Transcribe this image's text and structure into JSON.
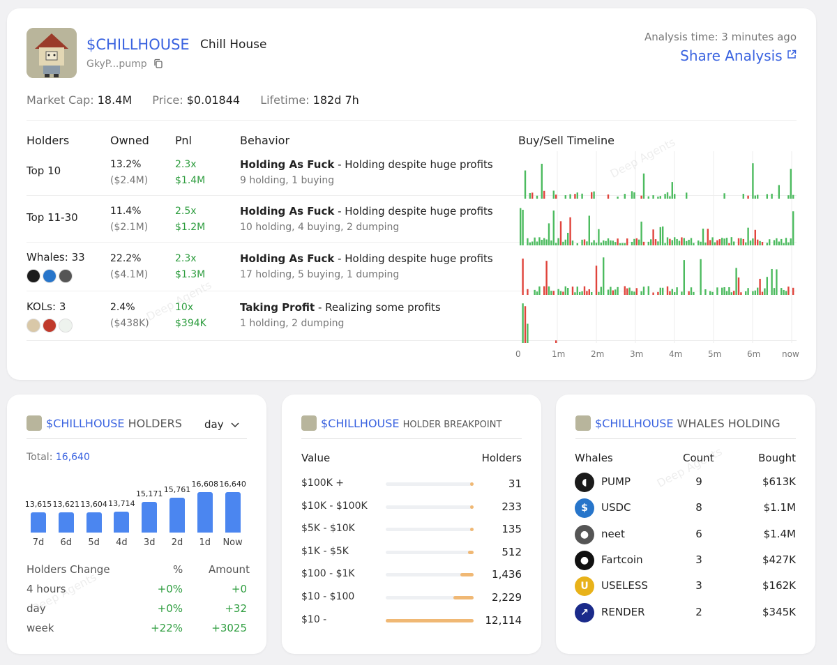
{
  "token": {
    "ticker": "$CHILLHOUSE",
    "name": "Chill House",
    "address": "GkyP...pump",
    "analysis_time": "Analysis time: 3 minutes ago",
    "share_label": "Share Analysis",
    "market_cap_label": "Market Cap:",
    "market_cap": "18.4M",
    "price_label": "Price:",
    "price": "$0.01844",
    "lifetime_label": "Lifetime:",
    "lifetime": "182d 7h"
  },
  "table": {
    "headers": [
      "Holders",
      "Owned",
      "Pnl",
      "Behavior",
      "Buy/Sell Timeline"
    ],
    "rows": [
      {
        "label": "Top 10",
        "owned_pct": "13.2%",
        "owned_usd": "($2.4M)",
        "pnl_x": "2.3x",
        "pnl_usd": "$1.4M",
        "behavior": "Holding As Fuck",
        "behavior_desc": " - Holding despite huge profits",
        "detail": "9 holding, 1 buying"
      },
      {
        "label": "Top 11-30",
        "owned_pct": "11.4%",
        "owned_usd": "($2.1M)",
        "pnl_x": "2.5x",
        "pnl_usd": "$1.2M",
        "behavior": "Holding As Fuck",
        "behavior_desc": " - Holding despite huge profits",
        "detail": "10 holding, 4 buying, 2 dumping"
      },
      {
        "label": "Whales: 33",
        "owned_pct": "22.2%",
        "owned_usd": "($4.1M)",
        "pnl_x": "2.3x",
        "pnl_usd": "$1.3M",
        "behavior": "Holding As Fuck",
        "behavior_desc": " - Holding despite huge profits",
        "detail": "17 holding, 5 buying, 1 dumping"
      },
      {
        "label": "KOLs: 3",
        "owned_pct": "2.4%",
        "owned_usd": "($438K)",
        "pnl_x": "10x",
        "pnl_usd": "$394K",
        "behavior": "Taking Profit",
        "behavior_desc": " - Realizing some profits",
        "detail": "1 holding, 2 dumping"
      }
    ],
    "timeline_ticks": [
      "0",
      "1m",
      "2m",
      "3m",
      "4m",
      "5m",
      "6m",
      "now"
    ]
  },
  "holders_card": {
    "title_ticker": "$CHILLHOUSE",
    "title_suffix": "HOLDERS",
    "period": "day",
    "total_label": "Total:",
    "total": "16,640",
    "chart_data": {
      "type": "bar",
      "categories": [
        "7d",
        "6d",
        "5d",
        "4d",
        "3d",
        "2d",
        "1d",
        "Now"
      ],
      "values": [
        13615,
        13621,
        13604,
        13714,
        15171,
        15761,
        16608,
        16640
      ],
      "value_labels": [
        "13,615",
        "13,621",
        "13,604",
        "13,714",
        "15,171",
        "15,761",
        "16,608",
        "16,640"
      ],
      "title": "$CHILLHOUSE HOLDERS"
    },
    "change_headers": [
      "Holders Change",
      "%",
      "Amount"
    ],
    "changes": [
      {
        "period": "4 hours",
        "pct": "+0%",
        "amount": "+0"
      },
      {
        "period": "day",
        "pct": "+0%",
        "amount": "+32"
      },
      {
        "period": "week",
        "pct": "+22%",
        "amount": "+3025"
      }
    ]
  },
  "breakpoint_card": {
    "title_ticker": "$CHILLHOUSE",
    "title_suffix": "HOLDER BREAKPOINT",
    "headers": [
      "Value",
      "Holders"
    ],
    "rows": [
      {
        "range": "$100K +",
        "count": "31",
        "fraction": 0.02
      },
      {
        "range": "$10K - $100K",
        "count": "233",
        "fraction": 0.04
      },
      {
        "range": "$5K - $10K",
        "count": "135",
        "fraction": 0.03
      },
      {
        "range": "$1K - $5K",
        "count": "512",
        "fraction": 0.06
      },
      {
        "range": "$100 - $1K",
        "count": "1,436",
        "fraction": 0.15
      },
      {
        "range": "$10 - $100",
        "count": "2,229",
        "fraction": 0.23
      },
      {
        "range": "$10 -",
        "count": "12,114",
        "fraction": 1.0
      }
    ]
  },
  "whales_card": {
    "title_ticker": "$CHILLHOUSE",
    "title_suffix": "WHALES HOLDING",
    "headers": [
      "Whales",
      "Count",
      "Bought"
    ],
    "rows": [
      {
        "name": "PUMP",
        "count": "9",
        "bought": "$613K",
        "icon": "pill-icon",
        "color": "#1b1b1b"
      },
      {
        "name": "USDC",
        "count": "8",
        "bought": "$1.1M",
        "icon": "dollar-icon",
        "color": "#2775ca"
      },
      {
        "name": "neet",
        "count": "6",
        "bought": "$1.4M",
        "icon": "neet-icon",
        "color": "#555555"
      },
      {
        "name": "Fartcoin",
        "count": "3",
        "bought": "$427K",
        "icon": "fartcoin-icon",
        "color": "#111111"
      },
      {
        "name": "USELESS",
        "count": "3",
        "bought": "$162K",
        "icon": "useless-icon",
        "color": "#e8b21a"
      },
      {
        "name": "RENDER",
        "count": "2",
        "bought": "$345K",
        "icon": "render-icon",
        "color": "#1a2a8a"
      }
    ]
  },
  "watermark": "Deep Agents",
  "colors": {
    "accent": "#3a63e0",
    "green": "#2e9d3f",
    "buy": "#4cbb5f",
    "sell": "#e0443c",
    "bar": "#4b86f0",
    "breakpoint": "#f0b874"
  }
}
